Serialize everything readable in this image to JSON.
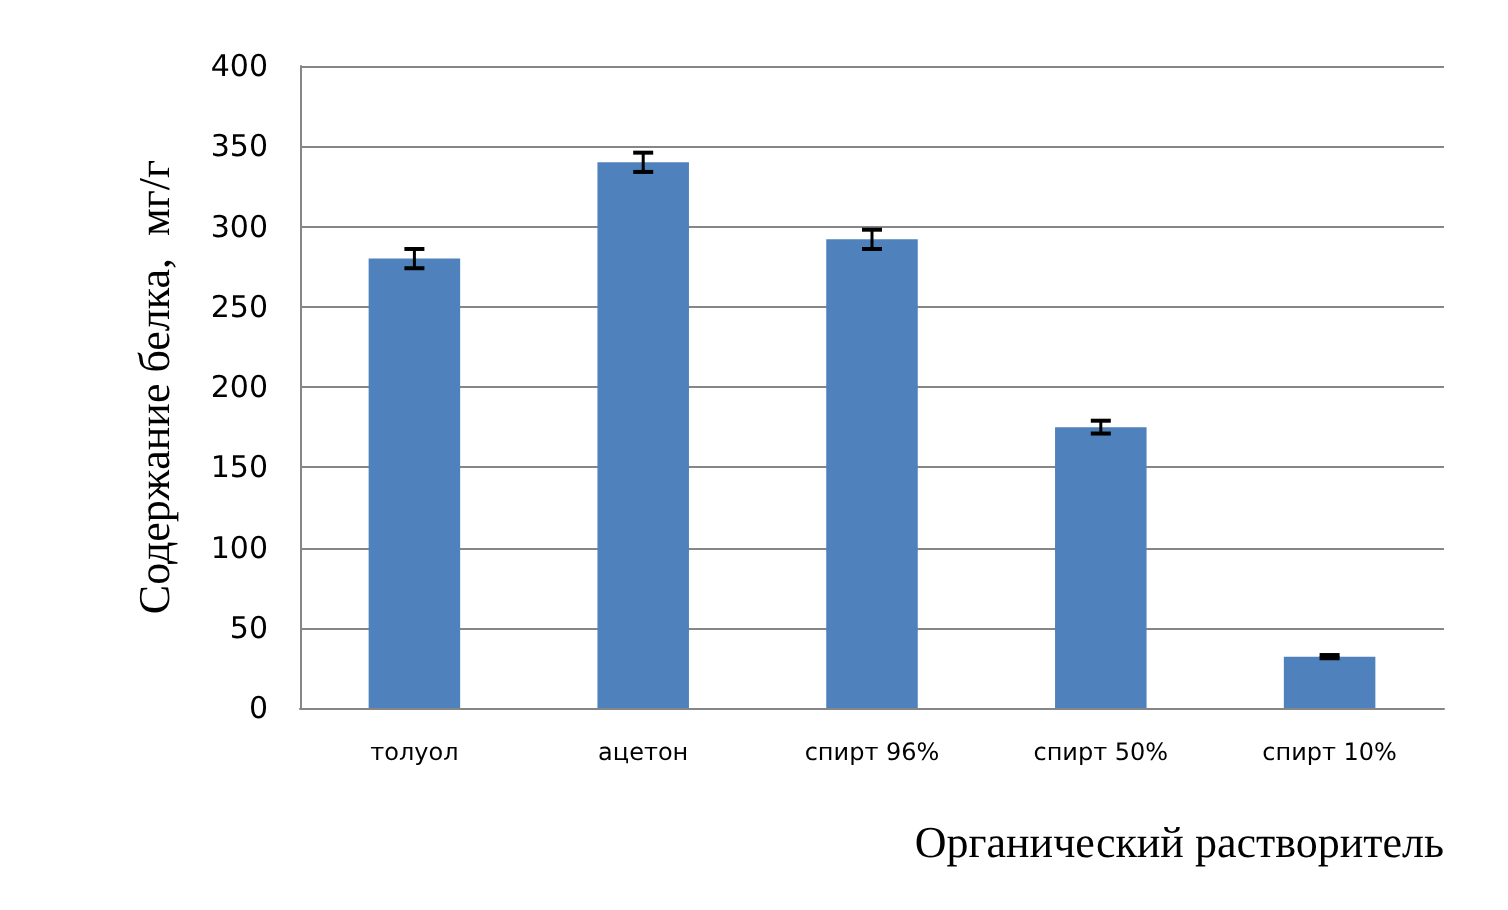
{
  "chart_data": {
    "type": "bar",
    "xlabel": "Органический растворитель",
    "ylabel": "Содержание белка,  мг/г",
    "categories": [
      "толуол",
      "ацетон",
      "спирт 96%",
      "спирт 50%",
      "спирт 10%"
    ],
    "values": [
      280,
      340,
      292,
      175,
      32
    ],
    "errors": [
      6,
      6,
      6,
      4,
      1
    ],
    "color": "#4f81bd",
    "ylim": [
      0,
      400
    ],
    "yticks": [
      0,
      50,
      100,
      150,
      200,
      250,
      300,
      350,
      400
    ],
    "grid": "y"
  }
}
